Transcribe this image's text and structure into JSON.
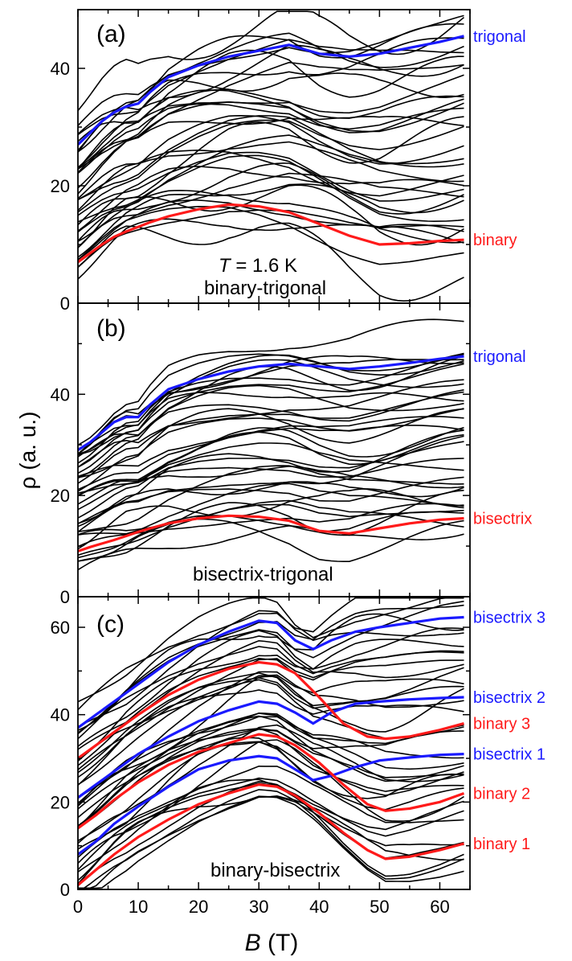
{
  "figure": {
    "ylabel": "ρ (a. u.)",
    "xlabel_var": "B",
    "xlabel_unit": " (T)",
    "colors": {
      "black": "#000000",
      "blue": "#1a1aff",
      "red": "#ff1a1a"
    }
  },
  "chart_data": [
    {
      "type": "line",
      "panel": "(a)",
      "annotation_T_var": "T",
      "annotation_T_value": " = 1.6 K",
      "annotation_plane": "binary-trigonal",
      "xlim": [
        0,
        65
      ],
      "ylim": [
        0,
        50
      ],
      "xticks": [
        0,
        10,
        20,
        30,
        40,
        50,
        60
      ],
      "yticks": [
        0,
        20,
        40
      ],
      "background_curve_count": 36,
      "highlighted": [
        {
          "name": "trigonal",
          "color": "blue",
          "x": [
            0,
            2,
            4,
            6,
            8,
            10,
            12,
            15,
            20,
            25,
            30,
            35,
            40,
            45,
            50,
            55,
            60,
            64
          ],
          "y": [
            27,
            29,
            31,
            32.5,
            33.5,
            34,
            36,
            38.5,
            40.5,
            42,
            43,
            44,
            42.5,
            42,
            42.5,
            43.5,
            44.5,
            45.5
          ]
        },
        {
          "name": "binary",
          "color": "red",
          "x": [
            0,
            2,
            4,
            6,
            8,
            10,
            12,
            15,
            20,
            25,
            30,
            35,
            40,
            45,
            50,
            55,
            60,
            64
          ],
          "y": [
            7,
            8.5,
            10,
            11.3,
            12.2,
            13,
            13.8,
            14.8,
            16,
            16.8,
            16.5,
            15.5,
            13.5,
            11.5,
            10,
            10.2,
            10.6,
            10.8
          ]
        }
      ]
    },
    {
      "type": "line",
      "panel": "(b)",
      "annotation_plane": "bisectrix-trigonal",
      "xlim": [
        0,
        65
      ],
      "ylim": [
        0,
        58
      ],
      "xticks": [
        0,
        10,
        20,
        30,
        40,
        50,
        60
      ],
      "yticks": [
        0,
        20,
        40
      ],
      "background_curve_count": 38,
      "highlighted": [
        {
          "name": "trigonal",
          "color": "blue",
          "x": [
            0,
            2,
            4,
            6,
            8,
            10,
            12,
            15,
            20,
            25,
            30,
            35,
            40,
            45,
            50,
            55,
            60,
            64
          ],
          "y": [
            29,
            30.5,
            32.5,
            34.5,
            35.5,
            35.5,
            38,
            41,
            43,
            44.5,
            45.5,
            46,
            45.5,
            45,
            45.5,
            46.2,
            47,
            47.5
          ]
        },
        {
          "name": "bisectrix",
          "color": "red",
          "x": [
            0,
            2,
            4,
            6,
            8,
            10,
            12,
            15,
            20,
            25,
            30,
            35,
            40,
            45,
            50,
            55,
            60,
            64
          ],
          "y": [
            9,
            9.8,
            10.5,
            11.2,
            12,
            12.8,
            13.5,
            14.5,
            15.5,
            16,
            15.8,
            15,
            13,
            12.5,
            13.5,
            14.5,
            15.2,
            15.5
          ]
        }
      ]
    },
    {
      "type": "line",
      "panel": "(c)",
      "annotation_plane": "binary-bisectrix",
      "xlim": [
        0,
        65
      ],
      "ylim": [
        0,
        67
      ],
      "xticks": [
        0,
        10,
        20,
        30,
        40,
        50,
        60
      ],
      "yticks": [
        0,
        20,
        40,
        60
      ],
      "background_curve_count": 40,
      "highlighted": [
        {
          "name": "bisectrix 3",
          "color": "blue",
          "x": [
            0,
            3,
            6,
            10,
            15,
            20,
            25,
            30,
            33,
            36,
            39,
            42,
            46,
            50,
            55,
            60,
            64
          ],
          "y": [
            37,
            40,
            43,
            47,
            52,
            56,
            59,
            61.5,
            61,
            57,
            55,
            57,
            59,
            60,
            61,
            62,
            62.3
          ]
        },
        {
          "name": "bisectrix 2",
          "color": "blue",
          "x": [
            0,
            3,
            6,
            10,
            15,
            20,
            25,
            30,
            33,
            36,
            39,
            42,
            46,
            50,
            55,
            60,
            64
          ],
          "y": [
            21,
            24,
            27,
            31,
            35,
            38.5,
            41,
            43,
            42.5,
            40.5,
            38,
            40.5,
            42.5,
            43,
            43.5,
            43.8,
            44
          ]
        },
        {
          "name": "binary 3",
          "color": "red",
          "x": [
            0,
            3,
            6,
            10,
            15,
            20,
            25,
            30,
            33,
            36,
            40,
            44,
            48,
            51,
            55,
            60,
            64
          ],
          "y": [
            30,
            33,
            36,
            40,
            44.5,
            48,
            50.5,
            52,
            51.5,
            49.5,
            44,
            38,
            35,
            34.5,
            35,
            36.5,
            38
          ]
        },
        {
          "name": "bisectrix 1",
          "color": "blue",
          "x": [
            0,
            3,
            6,
            10,
            15,
            20,
            25,
            30,
            33,
            36,
            39,
            42,
            46,
            50,
            55,
            60,
            64
          ],
          "y": [
            8,
            11,
            15,
            19,
            23.5,
            27.5,
            29.5,
            30.5,
            30,
            27.5,
            25,
            26,
            28,
            29.5,
            30.2,
            30.8,
            31
          ]
        },
        {
          "name": "binary 2",
          "color": "red",
          "x": [
            0,
            3,
            6,
            10,
            15,
            20,
            25,
            30,
            33,
            36,
            40,
            44,
            48,
            51,
            55,
            60,
            64
          ],
          "y": [
            14,
            17,
            20.5,
            24.5,
            28.5,
            31.5,
            33.5,
            35.5,
            35,
            33,
            29,
            24,
            19.5,
            18,
            18.5,
            20,
            22
          ]
        },
        {
          "name": "binary 1",
          "color": "red",
          "x": [
            0,
            3,
            6,
            10,
            15,
            20,
            25,
            30,
            33,
            36,
            40,
            44,
            48,
            51,
            55,
            60,
            64
          ],
          "y": [
            1,
            4.5,
            8,
            12,
            16,
            19.5,
            22,
            24,
            23.5,
            21.5,
            17.5,
            13,
            9,
            7,
            7.5,
            9,
            10.5
          ]
        }
      ]
    }
  ]
}
